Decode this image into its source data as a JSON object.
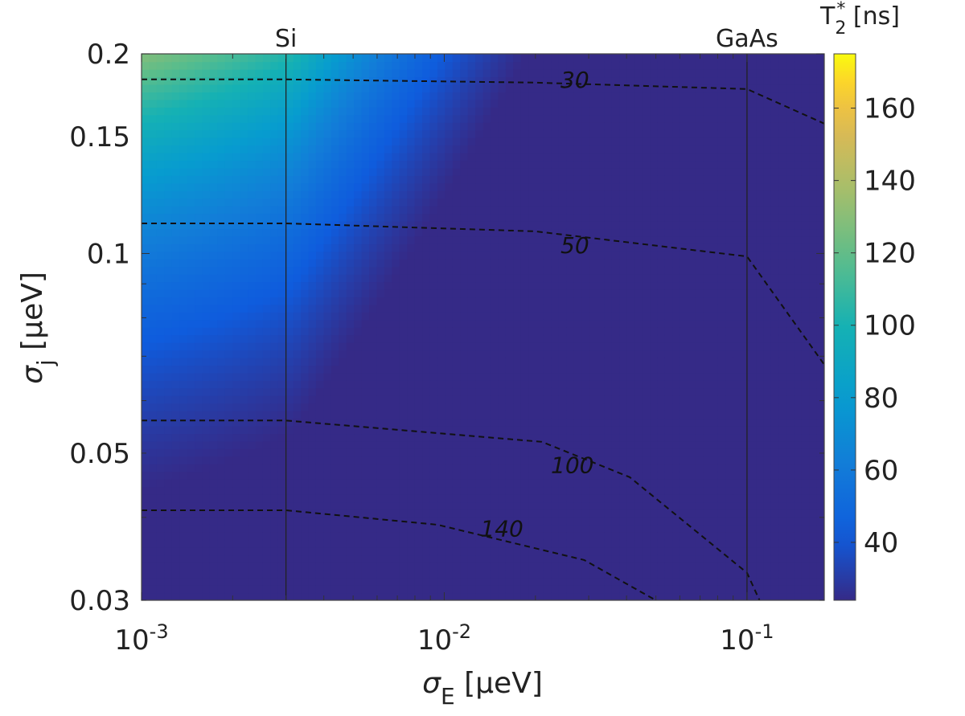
{
  "chart_data": {
    "type": "heatmap",
    "xlabel": "σE [μeV]",
    "ylabel": "σj [μeV]",
    "x_scale": "log",
    "y_scale": "log",
    "xlim": [
      0.001,
      0.18
    ],
    "ylim": [
      0.03,
      0.2
    ],
    "x_ticks": [
      {
        "value": 0.001,
        "base": "10",
        "exp": "-3"
      },
      {
        "value": 0.01,
        "base": "10",
        "exp": "-2"
      },
      {
        "value": 0.1,
        "base": "10",
        "exp": "-1"
      }
    ],
    "y_ticks": [
      {
        "value": 0.03,
        "label": "0.03"
      },
      {
        "value": 0.05,
        "label": "0.05"
      },
      {
        "value": 0.1,
        "label": "0.1"
      },
      {
        "value": 0.15,
        "label": "0.15"
      },
      {
        "value": 0.2,
        "label": "0.2"
      }
    ],
    "colorbar": {
      "label": "T2* [ns]",
      "label_main": "T",
      "label_sub": "2",
      "label_sup": "*",
      "label_unit": " [ns]",
      "range": [
        24,
        175
      ],
      "ticks": [
        40,
        60,
        80,
        100,
        120,
        140,
        160
      ],
      "colormap": "parula"
    },
    "material_lines": [
      {
        "name": "Si",
        "x": 0.003
      },
      {
        "name": "GaAs",
        "x": 0.1
      }
    ],
    "contours": [
      {
        "level": 30,
        "label": "30",
        "label_at": [
          0.027,
          0.183
        ],
        "points": [
          [
            0.001,
            0.183
          ],
          [
            0.003,
            0.183
          ],
          [
            0.02,
            0.181
          ],
          [
            0.1,
            0.177
          ],
          [
            0.18,
            0.157
          ]
        ]
      },
      {
        "level": 50,
        "label": "50",
        "label_at": [
          0.027,
          0.103
        ],
        "points": [
          [
            0.001,
            0.111
          ],
          [
            0.003,
            0.111
          ],
          [
            0.02,
            0.108
          ],
          [
            0.1,
            0.099
          ],
          [
            0.18,
            0.068
          ]
        ]
      },
      {
        "level": 100,
        "label": "100",
        "label_at": [
          0.0265,
          0.048
        ],
        "points": [
          [
            0.001,
            0.056
          ],
          [
            0.003,
            0.056
          ],
          [
            0.021,
            0.052
          ],
          [
            0.041,
            0.046
          ],
          [
            0.1,
            0.033
          ],
          [
            0.11,
            0.03
          ]
        ]
      },
      {
        "level": 140,
        "label": "140",
        "label_at": [
          0.0155,
          0.0385
        ],
        "points": [
          [
            0.001,
            0.041
          ],
          [
            0.003,
            0.041
          ],
          [
            0.0095,
            0.039
          ],
          [
            0.029,
            0.0345
          ],
          [
            0.05,
            0.03
          ]
        ]
      }
    ],
    "grid": false
  }
}
